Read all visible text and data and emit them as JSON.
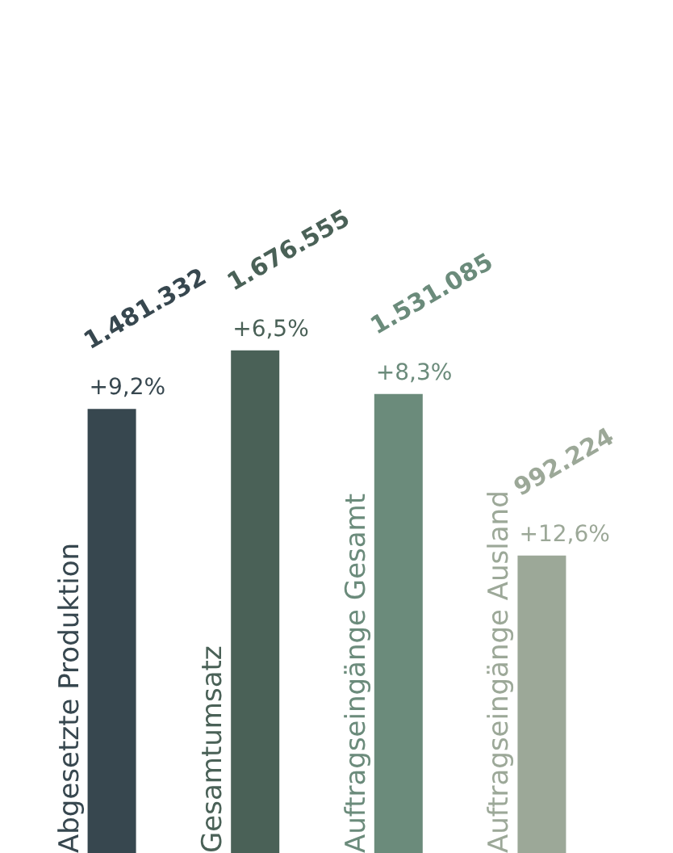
{
  "chart_data": {
    "type": "bar",
    "categories": [
      "Abgesetzte Produktion",
      "Gesamtumsatz",
      "Auftragseingänge Gesamt",
      "Auftragseingänge Ausland"
    ],
    "values": [
      1481332,
      1676555,
      1531085,
      992224
    ],
    "value_labels": [
      "1.481.332",
      "1.676.555",
      "1.531.085",
      "992.224"
    ],
    "colors": [
      "#37474f",
      "#4a6157",
      "#6b8b7b",
      "#9ca898"
    ],
    "annotations": [
      "+9,2%",
      "+6,5%",
      "+8,3%",
      "+12,6%"
    ]
  }
}
